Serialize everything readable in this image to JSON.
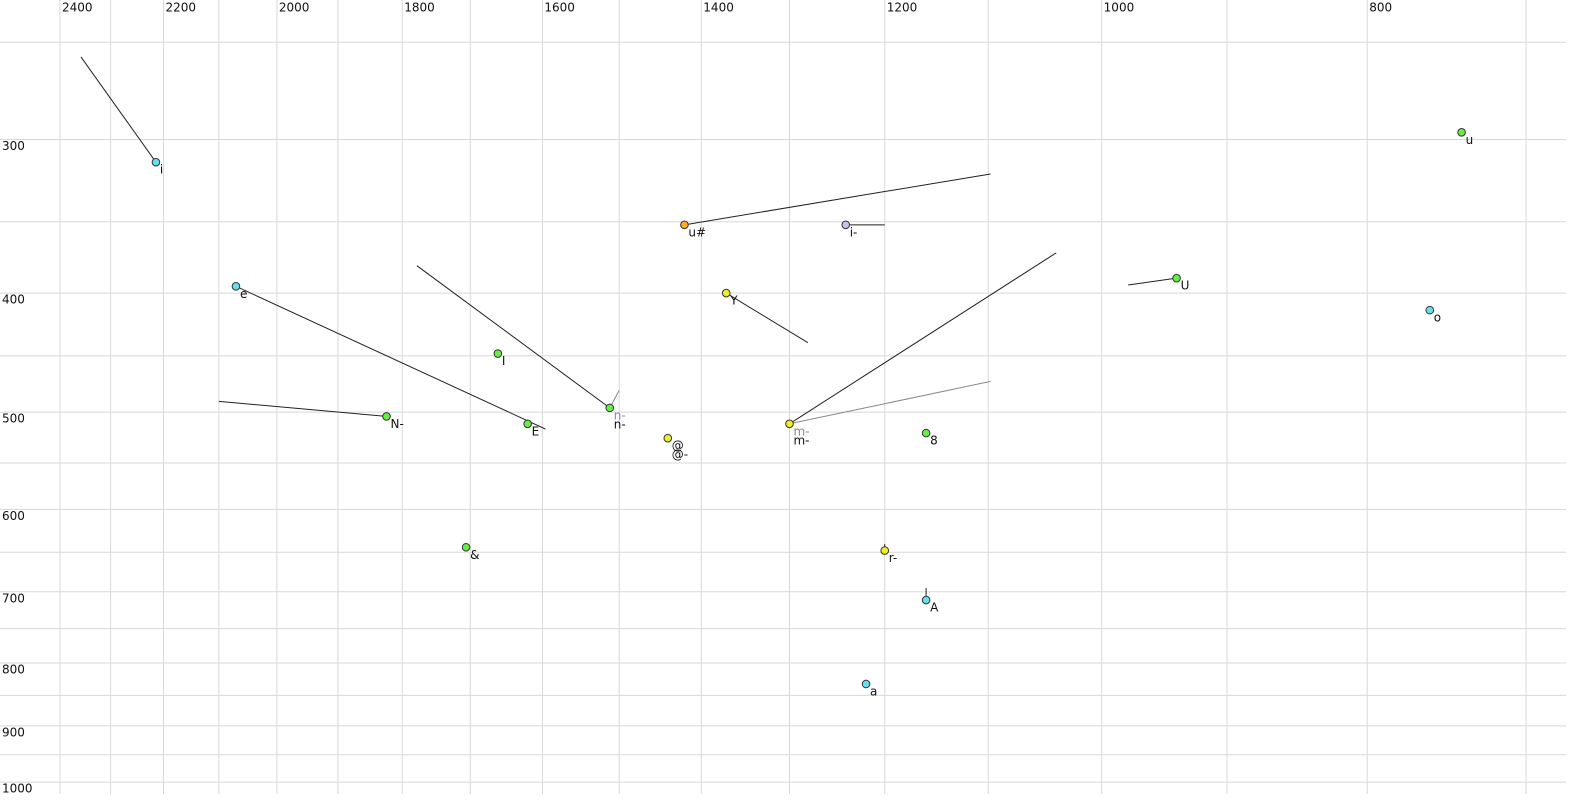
{
  "chart_data": {
    "type": "scatter",
    "xlog": true,
    "ylog": true,
    "grid": true,
    "xlim": [
      2524,
      669
    ],
    "ylim": [
      231,
      1034
    ],
    "xticks": [
      2400,
      2200,
      2000,
      1800,
      1600,
      1400,
      1200,
      1000,
      800
    ],
    "xminorticks": [
      2300,
      2100,
      1900,
      1700,
      1500,
      1300,
      1100,
      900,
      700
    ],
    "yticks": [
      300,
      400,
      500,
      600,
      700,
      800,
      900,
      1000
    ],
    "yminorticks": [
      250,
      350,
      450,
      550,
      650,
      750,
      850,
      950
    ],
    "points": [
      {
        "labels": [
          {
            "text": "i",
            "color": "#111"
          }
        ],
        "color": "#66e0ee",
        "f2": 2214,
        "f1": 313,
        "trails": [
          {
            "f2": 2358,
            "f1": 257,
            "color": "#222"
          }
        ]
      },
      {
        "labels": [
          {
            "text": "e",
            "color": "#111"
          }
        ],
        "color": "#66e0ee",
        "f2": 2070,
        "f1": 395,
        "trails": [
          {
            "f2": 1596,
            "f1": 516,
            "color": "#222"
          }
        ]
      },
      {
        "labels": [
          {
            "text": "N-",
            "color": "#111"
          }
        ],
        "color": "#66ee44",
        "f2": 1824,
        "f1": 504,
        "trails": [
          {
            "f2": 2100,
            "f1": 490,
            "color": "#222"
          }
        ]
      },
      {
        "labels": [
          {
            "text": "E",
            "color": "#111"
          }
        ],
        "color": "#66ee44",
        "f2": 1620,
        "f1": 511
      },
      {
        "labels": [
          {
            "text": "I",
            "color": "#111"
          }
        ],
        "color": "#66ee44",
        "f2": 1661,
        "f1": 448
      },
      {
        "labels": [
          {
            "text": "n-",
            "color": "#8888bb"
          },
          {
            "text": "n-",
            "color": "#111"
          }
        ],
        "color": "#66ee44",
        "f2": 1512,
        "f1": 496,
        "trails": [
          {
            "f2": 1778,
            "f1": 380,
            "color": "#222"
          },
          {
            "f2": 1500,
            "f1": 480,
            "color": "#888"
          }
        ]
      },
      {
        "labels": [
          {
            "text": "@",
            "color": "#111"
          },
          {
            "text": "@-",
            "color": "#111"
          }
        ],
        "color": "#eeee22",
        "f2": 1440,
        "f1": 525
      },
      {
        "labels": [
          {
            "text": "&",
            "color": "#111"
          }
        ],
        "color": "#66ee44",
        "f2": 1706,
        "f1": 644
      },
      {
        "labels": [
          {
            "text": "u#",
            "color": "#111"
          }
        ],
        "color": "#ffaa22",
        "f2": 1420,
        "f1": 352,
        "trails": [
          {
            "f2": 1098,
            "f1": 320,
            "color": "#222"
          }
        ]
      },
      {
        "labels": [
          {
            "text": "i-",
            "color": "#111"
          }
        ],
        "color": "#c8c0ee",
        "f2": 1240,
        "f1": 352,
        "trails": [
          {
            "f2": 1200,
            "f1": 352,
            "color": "#222"
          }
        ]
      },
      {
        "labels": [
          {
            "text": "Y",
            "color": "#111"
          }
        ],
        "color": "#eeee22",
        "f2": 1371,
        "f1": 400,
        "trails": [
          {
            "f2": 1280,
            "f1": 439,
            "color": "#222"
          }
        ]
      },
      {
        "labels": [
          {
            "text": "m-",
            "color": "#888"
          },
          {
            "text": "m-",
            "color": "#111"
          }
        ],
        "color": "#eeee22",
        "f2": 1300,
        "f1": 511,
        "trails": [
          {
            "f2": 1039,
            "f1": 371,
            "color": "#222"
          },
          {
            "f2": 1098,
            "f1": 472,
            "color": "#888"
          }
        ]
      },
      {
        "labels": [
          {
            "text": "8",
            "color": "#111"
          }
        ],
        "color": "#66ee44",
        "f2": 1159,
        "f1": 520
      },
      {
        "labels": [
          {
            "text": "r-",
            "color": "#111"
          }
        ],
        "color": "#eeee22",
        "f2": 1200,
        "f1": 648,
        "trails": [
          {
            "f2": 1200,
            "f1": 640,
            "color": "#222"
          }
        ]
      },
      {
        "labels": [
          {
            "text": "A",
            "color": "#111"
          }
        ],
        "color": "#66e0ee",
        "f2": 1159,
        "f1": 711,
        "trails": [
          {
            "f2": 1159,
            "f1": 695,
            "color": "#222"
          }
        ]
      },
      {
        "labels": [
          {
            "text": "a",
            "color": "#111"
          }
        ],
        "color": "#66e0ee",
        "f2": 1219,
        "f1": 832
      },
      {
        "labels": [
          {
            "text": "U",
            "color": "#111"
          }
        ],
        "color": "#66ee44",
        "f2": 939,
        "f1": 389,
        "trails": [
          {
            "f2": 978,
            "f1": 394,
            "color": "#222"
          }
        ]
      },
      {
        "labels": [
          {
            "text": "o",
            "color": "#111"
          }
        ],
        "color": "#66e0ee",
        "f2": 759,
        "f1": 413
      },
      {
        "labels": [
          {
            "text": "u",
            "color": "#111"
          }
        ],
        "color": "#66ee44",
        "f2": 739,
        "f1": 296
      }
    ]
  }
}
